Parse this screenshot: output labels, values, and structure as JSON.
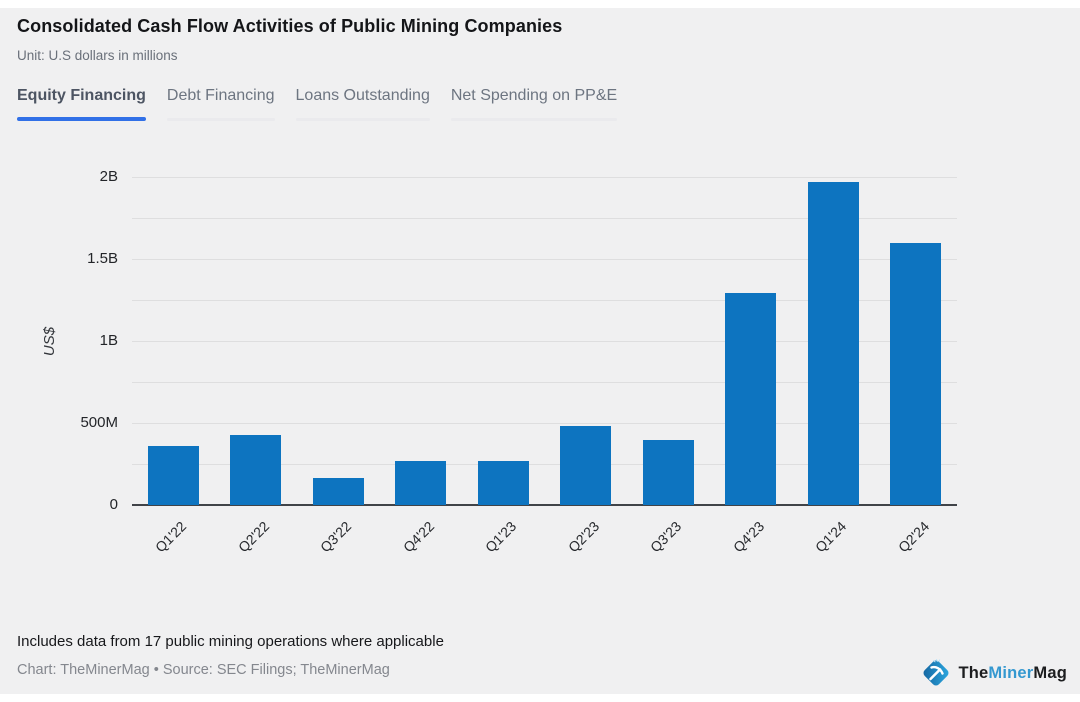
{
  "header": {
    "title": "Consolidated Cash Flow Activities of Public Mining Companies",
    "subtitle": "Unit: U.S dollars in millions"
  },
  "tabs": [
    {
      "label": "Equity Financing",
      "active": true
    },
    {
      "label": "Debt Financing",
      "active": false
    },
    {
      "label": "Loans Outstanding",
      "active": false
    },
    {
      "label": "Net Spending on PP&E",
      "active": false
    }
  ],
  "chart_data": {
    "type": "bar",
    "title": "Equity Financing",
    "unit": "U.S dollars in millions",
    "categories": [
      "Q1'22",
      "Q2'22",
      "Q3'22",
      "Q4'22",
      "Q1'23",
      "Q2'23",
      "Q3'23",
      "Q4'23",
      "Q1'24",
      "Q2'24"
    ],
    "values": [
      360,
      425,
      165,
      270,
      270,
      480,
      395,
      1290,
      1970,
      1600
    ],
    "ylabel": "US$",
    "ylim": [
      0,
      2000
    ],
    "ytick_values": [
      0,
      500,
      1000,
      1500,
      2000
    ],
    "ytick_labels": [
      "0",
      "500M",
      "1B",
      "1.5B",
      "2B"
    ],
    "grid_step": 250,
    "grid": true,
    "legend": false,
    "bar_color": "#0d74c0"
  },
  "footer": {
    "note": "Includes data from 17 public mining operations where applicable",
    "source": "Chart: TheMinerMag • Source: SEC Filings; TheMinerMag"
  },
  "logo": {
    "part_the": "The",
    "part_miner": "Miner",
    "part_mag": "Mag"
  },
  "colors": {
    "background": "#f0f0f1",
    "bar": "#0d74c0",
    "active_tab_underline": "#3170e7",
    "gridline": "#dededf",
    "logo_accent": "#3498d0"
  }
}
